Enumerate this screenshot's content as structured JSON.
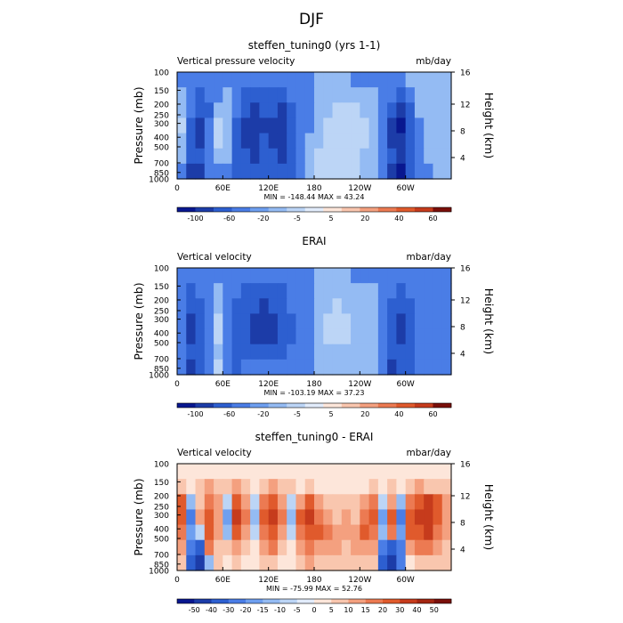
{
  "figure_title": "DJF",
  "chart_data": [
    {
      "type": "heatmap",
      "title": "steffen_tuning0 (yrs 1-1)",
      "left_label": "Vertical pressure velocity",
      "units": "mb/day",
      "ylabel": "Pressure (mb)",
      "y2label": "Height (km)",
      "pressure_ticks": [
        "100",
        "150",
        "200",
        "250",
        "300",
        "400",
        "500",
        "700",
        "850",
        "1000"
      ],
      "height_ticks": [
        "4",
        "8",
        "12",
        "16"
      ],
      "lon_ticks": [
        "0",
        "60E",
        "120E",
        "180",
        "120W",
        "60W"
      ],
      "stats": "MIN = -148.44   MAX =  43.24",
      "colorbar_labels": [
        "-100",
        "-60",
        "-20",
        "-5",
        "5",
        "20",
        "40",
        "60"
      ],
      "colorbar_colors": [
        "#08178f",
        "#1c3ca8",
        "#2d5fd0",
        "#4a7de6",
        "#6e9ff0",
        "#94bbf3",
        "#bcd5f6",
        "#e2ecfb",
        "#fde6da",
        "#f9c6ae",
        "#f4a07f",
        "#ec7a52",
        "#e05a2c",
        "#c63b1c",
        "#7a0f0a"
      ],
      "field": [
        [
          "-5",
          "-5",
          "-5",
          "-5",
          "-5",
          "-5",
          "-5",
          "-5",
          "-5",
          "-5",
          "-5",
          "-5",
          "-5",
          "-5",
          "-5",
          "5",
          "5",
          "5",
          "5",
          "-5",
          "-5",
          "-5",
          "-5",
          "-5",
          "-5",
          "5",
          "5",
          "5",
          "5",
          "5"
        ],
        [
          "5",
          "-5",
          "-20",
          "-5",
          "-5",
          "5",
          "-5",
          "-20",
          "-20",
          "-20",
          "-20",
          "-20",
          "-5",
          "-5",
          "-5",
          "5",
          "5",
          "5",
          "5",
          "5",
          "5",
          "5",
          "-5",
          "-5",
          "-20",
          "-5",
          "5",
          "5",
          "5",
          "5"
        ],
        [
          "5",
          "-5",
          "-20",
          "-20",
          "5",
          "5",
          "-5",
          "-20",
          "-60",
          "-20",
          "-20",
          "-60",
          "-20",
          "-5",
          "-5",
          "5",
          "5",
          "20",
          "20",
          "20",
          "5",
          "5",
          "-5",
          "-20",
          "-60",
          "-20",
          "5",
          "5",
          "5",
          "5"
        ],
        [
          "20",
          "-20",
          "-60",
          "-5",
          "20",
          "5",
          "-20",
          "-60",
          "-60",
          "-60",
          "-60",
          "-60",
          "-20",
          "-5",
          "-5",
          "5",
          "20",
          "20",
          "20",
          "20",
          "20",
          "5",
          "-5",
          "-60",
          "-100",
          "-20",
          "-5",
          "5",
          "5",
          "5"
        ],
        [
          "5",
          "-20",
          "-60",
          "-5",
          "20",
          "5",
          "-20",
          "-60",
          "-60",
          "-20",
          "-60",
          "-60",
          "-20",
          "-5",
          "5",
          "5",
          "20",
          "20",
          "20",
          "20",
          "20",
          "5",
          "-5",
          "-60",
          "-60",
          "-20",
          "-5",
          "5",
          "5",
          "5"
        ],
        [
          "5",
          "-20",
          "-20",
          "-5",
          "5",
          "5",
          "-20",
          "-20",
          "-60",
          "-20",
          "-20",
          "-60",
          "-20",
          "-5",
          "5",
          "20",
          "20",
          "20",
          "20",
          "20",
          "5",
          "5",
          "-5",
          "-20",
          "-60",
          "-20",
          "-5",
          "5",
          "5",
          "5"
        ],
        [
          "-5",
          "-60",
          "-60",
          "-5",
          "-5",
          "-5",
          "-20",
          "-20",
          "-20",
          "-20",
          "-20",
          "-20",
          "-20",
          "-5",
          "5",
          "20",
          "20",
          "20",
          "20",
          "20",
          "5",
          "5",
          "-5",
          "-60",
          "-100",
          "-20",
          "-5",
          "-5",
          "5",
          "5"
        ]
      ]
    },
    {
      "type": "heatmap",
      "title": "ERAI",
      "left_label": "Vertical velocity",
      "units": "mbar/day",
      "ylabel": "Pressure (mb)",
      "y2label": "Height (km)",
      "pressure_ticks": [
        "100",
        "150",
        "200",
        "250",
        "300",
        "400",
        "500",
        "700",
        "850",
        "1000"
      ],
      "height_ticks": [
        "4",
        "8",
        "12",
        "16"
      ],
      "lon_ticks": [
        "0",
        "60E",
        "120E",
        "180",
        "120W",
        "60W"
      ],
      "stats": "MIN = -103.19   MAX =  37.23",
      "colorbar_labels": [
        "-100",
        "-60",
        "-20",
        "-5",
        "5",
        "20",
        "40",
        "60"
      ],
      "colorbar_colors": [
        "#08178f",
        "#1c3ca8",
        "#2d5fd0",
        "#4a7de6",
        "#6e9ff0",
        "#94bbf3",
        "#bcd5f6",
        "#e2ecfb",
        "#fde6da",
        "#f9c6ae",
        "#f4a07f",
        "#ec7a52",
        "#e05a2c",
        "#c63b1c",
        "#7a0f0a"
      ],
      "field": [
        [
          "-5",
          "-5",
          "-5",
          "-5",
          "-5",
          "-5",
          "-5",
          "-5",
          "-5",
          "-5",
          "-5",
          "-5",
          "-5",
          "-5",
          "-5",
          "5",
          "5",
          "5",
          "5",
          "-5",
          "-5",
          "-5",
          "-5",
          "-5",
          "-5",
          "-5",
          "-5",
          "-5",
          "-5",
          "-5"
        ],
        [
          "-5",
          "-20",
          "-5",
          "-5",
          "5",
          "-5",
          "-5",
          "-20",
          "-20",
          "-20",
          "-20",
          "-20",
          "-5",
          "-5",
          "-5",
          "5",
          "5",
          "5",
          "5",
          "5",
          "5",
          "5",
          "-5",
          "-5",
          "-20",
          "-5",
          "-5",
          "-5",
          "-5",
          "-5"
        ],
        [
          "-5",
          "-20",
          "-20",
          "-5",
          "5",
          "-5",
          "-20",
          "-20",
          "-20",
          "-60",
          "-20",
          "-20",
          "-5",
          "-5",
          "-5",
          "5",
          "5",
          "20",
          "5",
          "5",
          "5",
          "5",
          "-5",
          "-20",
          "-20",
          "-20",
          "-5",
          "-5",
          "-5",
          "-5"
        ],
        [
          "-5",
          "-60",
          "-20",
          "-5",
          "20",
          "-5",
          "-20",
          "-20",
          "-60",
          "-60",
          "-60",
          "-20",
          "-20",
          "-5",
          "-5",
          "5",
          "20",
          "20",
          "20",
          "5",
          "5",
          "5",
          "-5",
          "-20",
          "-60",
          "-20",
          "-5",
          "-5",
          "-5",
          "-5"
        ],
        [
          "-5",
          "-60",
          "-20",
          "-5",
          "20",
          "-5",
          "-20",
          "-20",
          "-60",
          "-60",
          "-60",
          "-20",
          "-20",
          "-5",
          "-5",
          "5",
          "20",
          "20",
          "20",
          "5",
          "5",
          "5",
          "-5",
          "-20",
          "-60",
          "-20",
          "-5",
          "-5",
          "-5",
          "-5"
        ],
        [
          "-5",
          "-20",
          "-20",
          "-5",
          "5",
          "-5",
          "-20",
          "-20",
          "-20",
          "-20",
          "-20",
          "-20",
          "-5",
          "-5",
          "-5",
          "5",
          "5",
          "5",
          "5",
          "5",
          "5",
          "5",
          "-5",
          "-20",
          "-20",
          "-20",
          "-5",
          "-5",
          "-5",
          "-5"
        ],
        [
          "-5",
          "-60",
          "-20",
          "-5",
          "20",
          "-5",
          "-20",
          "-5",
          "-5",
          "-5",
          "-5",
          "-5",
          "-5",
          "-5",
          "-5",
          "5",
          "5",
          "5",
          "5",
          "5",
          "5",
          "5",
          "-5",
          "-60",
          "-20",
          "-20",
          "-5",
          "-5",
          "-5",
          "-5"
        ]
      ]
    },
    {
      "type": "heatmap",
      "title": "steffen_tuning0 - ERAI",
      "left_label": "Vertical velocity",
      "units": "mbar/day",
      "ylabel": "Pressure (mb)",
      "y2label": "Height (km)",
      "pressure_ticks": [
        "100",
        "150",
        "200",
        "250",
        "300",
        "400",
        "500",
        "700",
        "850",
        "1000"
      ],
      "height_ticks": [
        "4",
        "8",
        "12",
        "16"
      ],
      "lon_ticks": [
        "0",
        "60E",
        "120E",
        "180",
        "120W",
        "60W"
      ],
      "stats": "MIN = -75.99   MAX =  52.76",
      "colorbar_labels": [
        "-50",
        "-40",
        "-30",
        "-20",
        "-15",
        "-10",
        "-5",
        "0",
        "5",
        "10",
        "15",
        "20",
        "30",
        "40",
        "50"
      ],
      "colorbar_colors": [
        "#08178f",
        "#1c3ca8",
        "#2d5fd0",
        "#4a7de6",
        "#6e9ff0",
        "#94bbf3",
        "#bcd5f6",
        "#e2ecfb",
        "#fde6da",
        "#f9c6ae",
        "#f4a07f",
        "#ec7a52",
        "#e05a2c",
        "#c63b1c",
        "#a32612",
        "#7a0f0a"
      ],
      "field": [
        [
          "0",
          "0",
          "0",
          "0",
          "0",
          "0",
          "0",
          "0",
          "0",
          "0",
          "0",
          "0",
          "0",
          "0",
          "0",
          "0",
          "0",
          "0",
          "0",
          "0",
          "0",
          "0",
          "0",
          "0",
          "0",
          "0",
          "0",
          "0",
          "0",
          "0"
        ],
        [
          "5",
          "0",
          "5",
          "10",
          "5",
          "5",
          "10",
          "5",
          "0",
          "5",
          "10",
          "5",
          "5",
          "0",
          "5",
          "0",
          "0",
          "0",
          "0",
          "0",
          "0",
          "5",
          "0",
          "5",
          "0",
          "5",
          "10",
          "5",
          "5",
          "5"
        ],
        [
          "20",
          "-10",
          "5",
          "15",
          "10",
          "-5",
          "20",
          "10",
          "-5",
          "15",
          "20",
          "10",
          "-5",
          "10",
          "20",
          "10",
          "5",
          "5",
          "5",
          "5",
          "10",
          "15",
          "-5",
          "10",
          "-10",
          "15",
          "20",
          "30",
          "20",
          "10"
        ],
        [
          "20",
          "-20",
          "10",
          "20",
          "10",
          "-15",
          "30",
          "15",
          "-10",
          "20",
          "30",
          "15",
          "-10",
          "20",
          "30",
          "15",
          "10",
          "5",
          "10",
          "5",
          "15",
          "20",
          "-15",
          "20",
          "-20",
          "20",
          "30",
          "30",
          "20",
          "10"
        ],
        [
          "15",
          "-15",
          "-5",
          "20",
          "10",
          "-10",
          "20",
          "10",
          "-5",
          "15",
          "20",
          "10",
          "-5",
          "15",
          "20",
          "20",
          "15",
          "10",
          "10",
          "10",
          "20",
          "15",
          "-10",
          "15",
          "-15",
          "20",
          "20",
          "30",
          "15",
          "10"
        ],
        [
          "10",
          "-20",
          "-30",
          "15",
          "5",
          "5",
          "10",
          "5",
          "0",
          "10",
          "15",
          "5",
          "0",
          "10",
          "15",
          "10",
          "10",
          "10",
          "5",
          "10",
          "10",
          "10",
          "-20",
          "-30",
          "-20",
          "10",
          "15",
          "15",
          "10",
          "5"
        ],
        [
          "5",
          "-30",
          "-40",
          "-10",
          "5",
          "0",
          "5",
          "0",
          "0",
          "5",
          "5",
          "0",
          "0",
          "5",
          "10",
          "5",
          "5",
          "5",
          "5",
          "5",
          "5",
          "5",
          "-30",
          "-40",
          "-20",
          "0",
          "5",
          "5",
          "5",
          "5"
        ]
      ]
    }
  ]
}
